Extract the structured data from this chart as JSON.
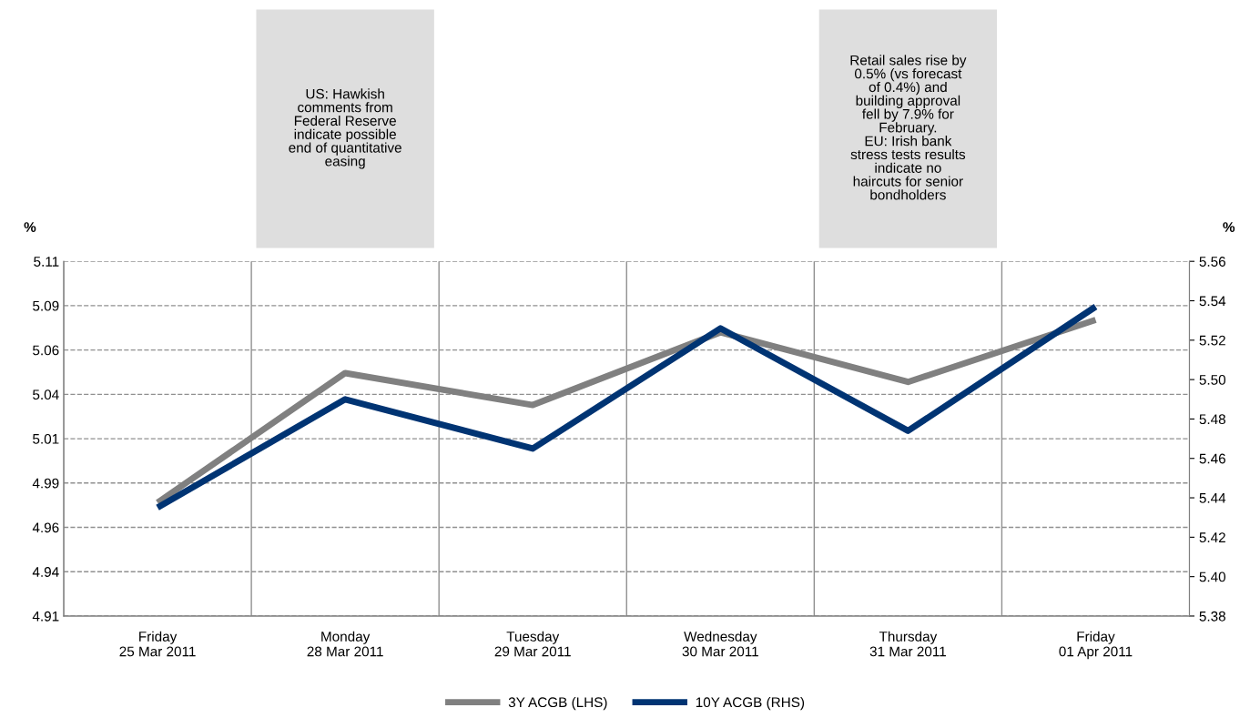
{
  "chart_data": {
    "type": "line",
    "categories": [
      "Friday\n25 Mar 2011",
      "Monday\n28 Mar 2011",
      "Tuesday\n29 Mar 2011",
      "Wednesday\n30 Mar 2011",
      "Thursday\n31 Mar 2011",
      "Friday\n01 Apr 2011"
    ],
    "series": [
      {
        "name": "3Y ACGB (LHS)",
        "color": "#808080",
        "values": [
          4.974,
          5.047,
          5.029,
          5.07,
          5.042,
          5.077
        ]
      },
      {
        "name": "10Y ACGB (RHS)",
        "color": "#003473",
        "axis": "y2",
        "values": [
          5.435,
          5.49,
          5.465,
          5.526,
          5.474,
          5.537
        ]
      }
    ],
    "ylabel": "%",
    "y2label": "%",
    "ylim": [
      4.91,
      5.11
    ],
    "yticks": [
      {
        "value": 4.91,
        "label": "4.91"
      },
      {
        "value": 4.935,
        "label": "4.94"
      },
      {
        "value": 4.96,
        "label": "4.96"
      },
      {
        "value": 4.985,
        "label": "4.99"
      },
      {
        "value": 5.01,
        "label": "5.01"
      },
      {
        "value": 5.035,
        "label": "5.04"
      },
      {
        "value": 5.06,
        "label": "5.06"
      },
      {
        "value": 5.085,
        "label": "5.09"
      },
      {
        "value": 5.11,
        "label": "5.11"
      }
    ],
    "y2lim": [
      5.38,
      5.56
    ],
    "y2ticks": [
      {
        "value": 5.38,
        "label": "5.38"
      },
      {
        "value": 5.4,
        "label": "5.40"
      },
      {
        "value": 5.42,
        "label": "5.42"
      },
      {
        "value": 5.44,
        "label": "5.44"
      },
      {
        "value": 5.46,
        "label": "5.46"
      },
      {
        "value": 5.48,
        "label": "5.48"
      },
      {
        "value": 5.5,
        "label": "5.50"
      },
      {
        "value": 5.52,
        "label": "5.52"
      },
      {
        "value": 5.54,
        "label": "5.54"
      },
      {
        "value": 5.56,
        "label": "5.56"
      }
    ],
    "annotations": [
      "US: Hawkish\ncomments from\nFederal Reserve\nindicate possible\nend of quantitative\neasing",
      "Retail sales rise by\n0.5% (vs forecast\nof 0.4%) and\nbuilding approval\nfell by 7.9% for\nFebruary.\nEU: Irish bank\nstress tests results\nindicate no\nhaircuts for senior\nbondholders"
    ],
    "grid": true,
    "legend": "bottom",
    "marker": "none",
    "line_style": "solid"
  }
}
